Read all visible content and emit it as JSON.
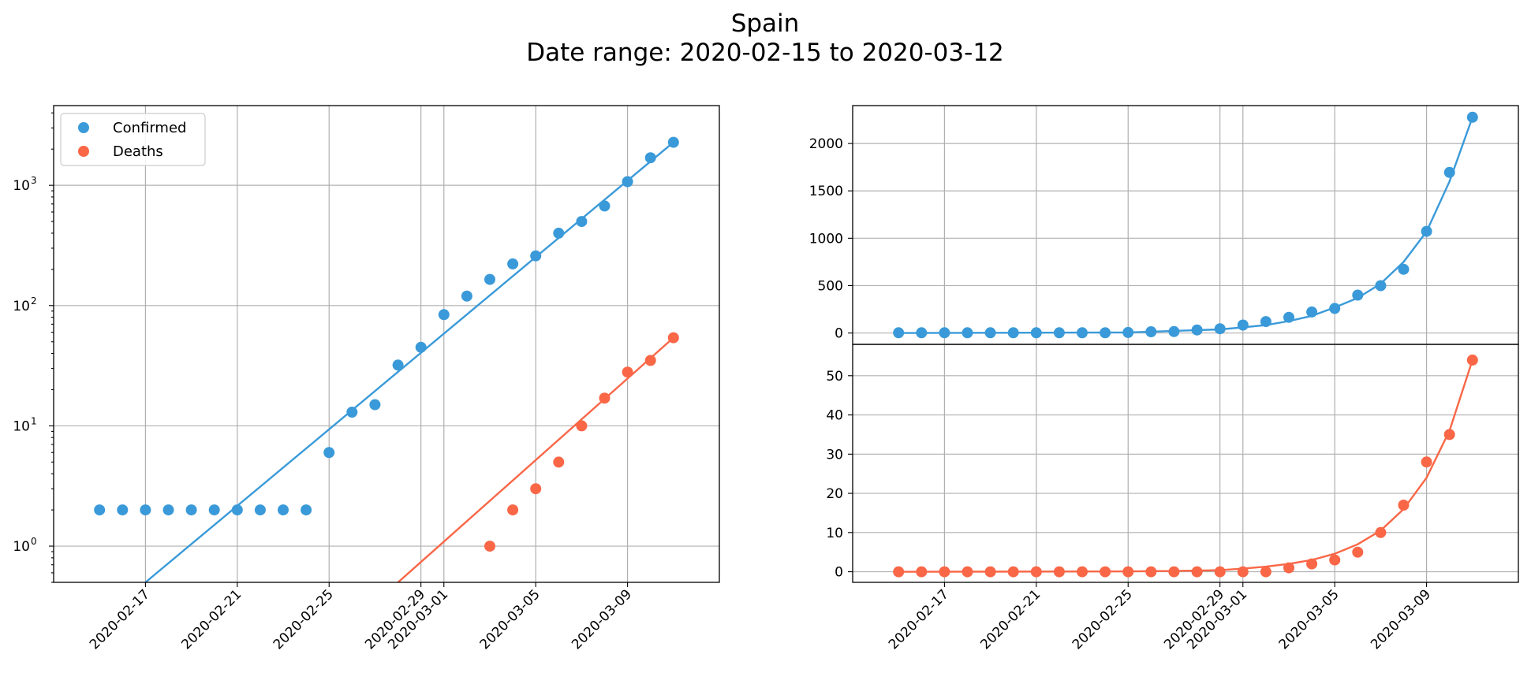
{
  "figure": {
    "title_line1": "Spain",
    "title_line2": "Date range: 2020-02-15 to 2020-03-12"
  },
  "colors": {
    "confirmed": "#3a9ad9",
    "deaths": "#f96747"
  },
  "chart_data": [
    {
      "type": "scatter",
      "panel": "left",
      "yscale": "log",
      "ylim": [
        0.5,
        4600
      ],
      "yticks": [
        {
          "value": 1,
          "base": "10",
          "exp": "0"
        },
        {
          "value": 10,
          "base": "10",
          "exp": "1"
        },
        {
          "value": 100,
          "base": "10",
          "exp": "2"
        },
        {
          "value": 1000,
          "base": "10",
          "exp": "3"
        }
      ],
      "xlim": [
        "2020-02-13",
        "2020-03-13"
      ],
      "xticks": [
        "2020-02-17",
        "2020-02-21",
        "2020-02-25",
        "2020-02-29",
        "2020-03-01",
        "2020-03-05",
        "2020-03-09"
      ],
      "grid": true,
      "legend": {
        "placement": "top-left",
        "entries": [
          "Confirmed",
          "Deaths"
        ]
      },
      "series": [
        {
          "name": "Confirmed",
          "color": "#3a9ad9",
          "points": [
            [
              "2020-02-15",
              2
            ],
            [
              "2020-02-16",
              2
            ],
            [
              "2020-02-17",
              2
            ],
            [
              "2020-02-18",
              2
            ],
            [
              "2020-02-19",
              2
            ],
            [
              "2020-02-20",
              2
            ],
            [
              "2020-02-21",
              2
            ],
            [
              "2020-02-22",
              2
            ],
            [
              "2020-02-23",
              2
            ],
            [
              "2020-02-24",
              2
            ],
            [
              "2020-02-25",
              6
            ],
            [
              "2020-02-26",
              13
            ],
            [
              "2020-02-27",
              15
            ],
            [
              "2020-02-28",
              32
            ],
            [
              "2020-02-29",
              45
            ],
            [
              "2020-03-01",
              84
            ],
            [
              "2020-03-02",
              120
            ],
            [
              "2020-03-03",
              165
            ],
            [
              "2020-03-04",
              222
            ],
            [
              "2020-03-05",
              259
            ],
            [
              "2020-03-06",
              400
            ],
            [
              "2020-03-07",
              500
            ],
            [
              "2020-03-08",
              673
            ],
            [
              "2020-03-09",
              1073
            ],
            [
              "2020-03-10",
              1695
            ],
            [
              "2020-03-11",
              2277
            ]
          ],
          "fit_line": [
            [
              "2020-02-17",
              0.5
            ],
            [
              "2020-03-11",
              2277
            ]
          ]
        },
        {
          "name": "Deaths",
          "color": "#f96747",
          "points": [
            [
              "2020-03-03",
              1
            ],
            [
              "2020-03-04",
              2
            ],
            [
              "2020-03-05",
              3
            ],
            [
              "2020-03-06",
              5
            ],
            [
              "2020-03-07",
              10
            ],
            [
              "2020-03-08",
              17
            ],
            [
              "2020-03-09",
              28
            ],
            [
              "2020-03-10",
              35
            ],
            [
              "2020-03-11",
              54
            ]
          ],
          "fit_line": [
            [
              "2020-02-28",
              0.5
            ],
            [
              "2020-03-11",
              54
            ]
          ]
        }
      ]
    },
    {
      "type": "scatter",
      "panel": "right-top",
      "yscale": "linear",
      "ylim": [
        -120,
        2400
      ],
      "yticks": [
        0,
        500,
        1000,
        1500,
        2000
      ],
      "xlim": [
        "2020-02-13",
        "2020-03-13"
      ],
      "grid": true,
      "series": [
        {
          "name": "Confirmed",
          "color": "#3a9ad9",
          "points": [
            [
              "2020-02-15",
              2
            ],
            [
              "2020-02-16",
              2
            ],
            [
              "2020-02-17",
              2
            ],
            [
              "2020-02-18",
              2
            ],
            [
              "2020-02-19",
              2
            ],
            [
              "2020-02-20",
              2
            ],
            [
              "2020-02-21",
              2
            ],
            [
              "2020-02-22",
              2
            ],
            [
              "2020-02-23",
              2
            ],
            [
              "2020-02-24",
              2
            ],
            [
              "2020-02-25",
              6
            ],
            [
              "2020-02-26",
              13
            ],
            [
              "2020-02-27",
              15
            ],
            [
              "2020-02-28",
              32
            ],
            [
              "2020-02-29",
              45
            ],
            [
              "2020-03-01",
              84
            ],
            [
              "2020-03-02",
              120
            ],
            [
              "2020-03-03",
              165
            ],
            [
              "2020-03-04",
              222
            ],
            [
              "2020-03-05",
              259
            ],
            [
              "2020-03-06",
              400
            ],
            [
              "2020-03-07",
              500
            ],
            [
              "2020-03-08",
              673
            ],
            [
              "2020-03-09",
              1073
            ],
            [
              "2020-03-10",
              1695
            ],
            [
              "2020-03-11",
              2277
            ]
          ],
          "fit_line": [
            [
              "2020-02-15",
              0
            ],
            [
              "2020-02-25",
              6
            ],
            [
              "2020-02-29",
              38
            ],
            [
              "2020-03-01",
              60
            ],
            [
              "2020-03-02",
              84
            ],
            [
              "2020-03-03",
              125
            ],
            [
              "2020-03-04",
              180
            ],
            [
              "2020-03-05",
              270
            ],
            [
              "2020-03-06",
              370
            ],
            [
              "2020-03-07",
              520
            ],
            [
              "2020-03-08",
              750
            ],
            [
              "2020-03-09",
              1070
            ],
            [
              "2020-03-10",
              1600
            ],
            [
              "2020-03-11",
              2277
            ]
          ]
        }
      ]
    },
    {
      "type": "scatter",
      "panel": "right-bottom",
      "yscale": "linear",
      "ylim": [
        -2.7,
        58
      ],
      "yticks": [
        0,
        10,
        20,
        30,
        40,
        50
      ],
      "xlim": [
        "2020-02-13",
        "2020-03-13"
      ],
      "xticks": [
        "2020-02-17",
        "2020-02-21",
        "2020-02-25",
        "2020-02-29",
        "2020-03-01",
        "2020-03-05",
        "2020-03-09"
      ],
      "grid": true,
      "series": [
        {
          "name": "Deaths",
          "color": "#f96747",
          "points": [
            [
              "2020-02-15",
              0
            ],
            [
              "2020-02-16",
              0
            ],
            [
              "2020-02-17",
              0
            ],
            [
              "2020-02-18",
              0
            ],
            [
              "2020-02-19",
              0
            ],
            [
              "2020-02-20",
              0
            ],
            [
              "2020-02-21",
              0
            ],
            [
              "2020-02-22",
              0
            ],
            [
              "2020-02-23",
              0
            ],
            [
              "2020-02-24",
              0
            ],
            [
              "2020-02-25",
              0
            ],
            [
              "2020-02-26",
              0
            ],
            [
              "2020-02-27",
              0
            ],
            [
              "2020-02-28",
              0
            ],
            [
              "2020-02-29",
              0
            ],
            [
              "2020-03-01",
              0
            ],
            [
              "2020-03-02",
              0
            ],
            [
              "2020-03-03",
              1
            ],
            [
              "2020-03-04",
              2
            ],
            [
              "2020-03-05",
              3
            ],
            [
              "2020-03-06",
              5
            ],
            [
              "2020-03-07",
              10
            ],
            [
              "2020-03-08",
              17
            ],
            [
              "2020-03-09",
              28
            ],
            [
              "2020-03-10",
              35
            ],
            [
              "2020-03-11",
              54
            ]
          ],
          "fit_line": [
            [
              "2020-02-15",
              0
            ],
            [
              "2020-02-25",
              0.1
            ],
            [
              "2020-02-27",
              0.2
            ],
            [
              "2020-02-29",
              0.4
            ],
            [
              "2020-03-01",
              0.8
            ],
            [
              "2020-03-02",
              1.3
            ],
            [
              "2020-03-03",
              2
            ],
            [
              "2020-03-04",
              3
            ],
            [
              "2020-03-05",
              4.6
            ],
            [
              "2020-03-06",
              7
            ],
            [
              "2020-03-07",
              10.5
            ],
            [
              "2020-03-08",
              16
            ],
            [
              "2020-03-09",
              24
            ],
            [
              "2020-03-10",
              36
            ],
            [
              "2020-03-11",
              54
            ]
          ]
        }
      ]
    }
  ]
}
